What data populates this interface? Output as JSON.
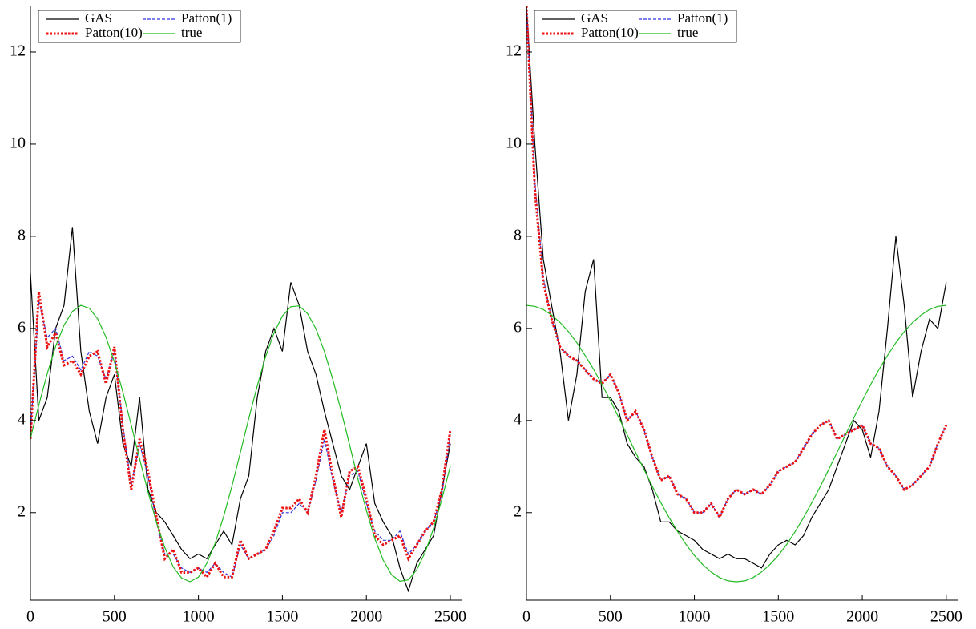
{
  "chart_data": [
    {
      "type": "line",
      "x": [
        0,
        50,
        100,
        150,
        200,
        250,
        300,
        350,
        400,
        450,
        500,
        550,
        600,
        650,
        700,
        750,
        800,
        850,
        900,
        950,
        1000,
        1050,
        1100,
        1150,
        1200,
        1250,
        1300,
        1350,
        1400,
        1450,
        1500,
        1550,
        1600,
        1650,
        1700,
        1750,
        1800,
        1850,
        1900,
        1950,
        2000,
        2050,
        2100,
        2150,
        2200,
        2250,
        2300,
        2350,
        2400,
        2450,
        2500
      ],
      "series": [
        {
          "name": "GAS",
          "color": "#000000",
          "style": "solid",
          "width": 1.2,
          "values": [
            7.2,
            4.0,
            4.5,
            6.0,
            6.5,
            8.2,
            5.5,
            4.2,
            3.5,
            4.5,
            5.0,
            3.5,
            3.0,
            4.5,
            2.5,
            2.0,
            1.8,
            1.5,
            1.2,
            1.0,
            1.1,
            1.0,
            1.3,
            1.6,
            1.3,
            2.3,
            2.8,
            4.5,
            5.5,
            6.0,
            5.5,
            7.0,
            6.5,
            5.5,
            5.0,
            4.2,
            3.5,
            2.8,
            2.5,
            3.0,
            3.5,
            2.2,
            1.8,
            1.5,
            0.8,
            0.3,
            0.9,
            1.2,
            1.5,
            2.5,
            3.5
          ]
        },
        {
          "name": "Patton(1)",
          "color": "#3333dd",
          "style": "dashed",
          "width": 1.2,
          "values": [
            3.7,
            6.6,
            5.8,
            6.0,
            5.3,
            5.4,
            5.1,
            5.5,
            5.4,
            4.9,
            5.5,
            3.9,
            2.6,
            3.5,
            2.8,
            1.8,
            1.1,
            1.1,
            0.8,
            0.7,
            0.8,
            0.7,
            0.9,
            0.7,
            0.6,
            1.3,
            1.0,
            1.1,
            1.2,
            1.5,
            2.0,
            2.0,
            2.2,
            2.0,
            2.7,
            3.6,
            2.7,
            2.0,
            2.8,
            2.9,
            2.2,
            1.6,
            1.4,
            1.4,
            1.6,
            1.1,
            1.3,
            1.6,
            1.8,
            2.4,
            3.7
          ]
        },
        {
          "name": "Patton(10)",
          "color": "#ee1111",
          "style": "dotted",
          "width": 3,
          "values": [
            3.6,
            6.8,
            5.6,
            5.9,
            5.2,
            5.3,
            5.0,
            5.4,
            5.5,
            4.8,
            5.6,
            3.8,
            2.5,
            3.6,
            2.9,
            1.9,
            1.0,
            1.2,
            0.7,
            0.7,
            0.8,
            0.6,
            0.9,
            0.6,
            0.6,
            1.4,
            1.0,
            1.1,
            1.2,
            1.6,
            2.1,
            2.1,
            2.3,
            2.0,
            2.8,
            3.8,
            2.8,
            1.9,
            2.9,
            3.0,
            2.3,
            1.5,
            1.3,
            1.4,
            1.5,
            1.0,
            1.3,
            1.6,
            1.8,
            2.5,
            3.8
          ]
        },
        {
          "name": "true",
          "color": "#22bb22",
          "style": "solid",
          "width": 1.2,
          "values": [
            3.61,
            4.34,
            5.02,
            5.61,
            6.07,
            6.37,
            6.5,
            6.44,
            6.21,
            5.81,
            5.27,
            4.62,
            3.9,
            3.17,
            2.45,
            1.79,
            1.24,
            0.82,
            0.58,
            0.5,
            0.6,
            0.9,
            1.34,
            1.92,
            2.58,
            3.31,
            4.05,
            4.75,
            5.39,
            5.9,
            6.27,
            6.47,
            6.49,
            6.32,
            5.99,
            5.5,
            4.89,
            4.2,
            3.47,
            2.73,
            2.05,
            1.44,
            0.97,
            0.65,
            0.51,
            0.54,
            0.76,
            1.14,
            1.66,
            2.3,
            3.01
          ]
        }
      ],
      "xlim": [
        0,
        2570
      ],
      "ylim": [
        0.1,
        13
      ],
      "xticks": [
        0,
        500,
        1000,
        1500,
        2000,
        2500
      ],
      "yticks": [
        2,
        4,
        6,
        8,
        10,
        12
      ]
    },
    {
      "type": "line",
      "x": [
        0,
        50,
        100,
        150,
        200,
        250,
        300,
        350,
        400,
        450,
        500,
        550,
        600,
        650,
        700,
        750,
        800,
        850,
        900,
        950,
        1000,
        1050,
        1100,
        1150,
        1200,
        1250,
        1300,
        1350,
        1400,
        1450,
        1500,
        1550,
        1600,
        1650,
        1700,
        1750,
        1800,
        1850,
        1900,
        1950,
        2000,
        2050,
        2100,
        2150,
        2200,
        2250,
        2300,
        2350,
        2400,
        2450,
        2500
      ],
      "series": [
        {
          "name": "GAS",
          "color": "#000000",
          "style": "solid",
          "width": 1.2,
          "values": [
            13,
            10,
            7.5,
            6.5,
            5.5,
            4.0,
            5.0,
            6.8,
            7.5,
            4.5,
            4.5,
            4.2,
            3.5,
            3.2,
            3.0,
            2.5,
            1.8,
            1.8,
            1.6,
            1.5,
            1.4,
            1.2,
            1.1,
            1.0,
            1.1,
            1.0,
            1.0,
            0.9,
            0.8,
            1.1,
            1.3,
            1.4,
            1.3,
            1.5,
            1.9,
            2.2,
            2.5,
            3.0,
            3.5,
            4.0,
            3.8,
            3.2,
            4.2,
            6.0,
            8.0,
            6.5,
            4.5,
            5.5,
            6.2,
            6.0,
            7.0
          ]
        },
        {
          "name": "Patton(1)",
          "color": "#3333dd",
          "style": "dashed",
          "width": 1.2,
          "values": [
            13,
            9.2,
            7.1,
            6.2,
            5.6,
            5.4,
            5.3,
            5.1,
            4.9,
            4.8,
            5.0,
            4.6,
            4.0,
            4.2,
            3.8,
            3.2,
            2.7,
            2.8,
            2.4,
            2.3,
            2.0,
            2.0,
            2.2,
            1.9,
            2.3,
            2.5,
            2.4,
            2.5,
            2.4,
            2.6,
            2.9,
            3.0,
            3.1,
            3.4,
            3.7,
            3.9,
            4.0,
            3.6,
            3.7,
            3.8,
            3.9,
            3.5,
            3.4,
            3.0,
            2.8,
            2.5,
            2.6,
            2.8,
            3.0,
            3.5,
            3.9
          ]
        },
        {
          "name": "Patton(10)",
          "color": "#ee1111",
          "style": "dotted",
          "width": 3,
          "values": [
            13,
            9,
            7.0,
            6.2,
            5.6,
            5.4,
            5.3,
            5.1,
            4.9,
            4.8,
            5.0,
            4.6,
            4.0,
            4.2,
            3.8,
            3.2,
            2.7,
            2.8,
            2.4,
            2.3,
            2.0,
            2.0,
            2.2,
            1.9,
            2.3,
            2.5,
            2.4,
            2.5,
            2.4,
            2.6,
            2.9,
            3.0,
            3.1,
            3.4,
            3.7,
            3.9,
            4.0,
            3.6,
            3.7,
            3.8,
            3.9,
            3.5,
            3.4,
            3.0,
            2.8,
            2.5,
            2.6,
            2.8,
            3.0,
            3.5,
            3.9
          ]
        },
        {
          "name": "true",
          "color": "#22bb22",
          "style": "solid",
          "width": 1.2,
          "values": [
            6.5,
            6.48,
            6.41,
            6.29,
            6.13,
            5.93,
            5.69,
            5.41,
            5.11,
            4.78,
            4.43,
            4.06,
            3.69,
            3.31,
            2.94,
            2.57,
            2.22,
            1.89,
            1.59,
            1.31,
            1.07,
            0.87,
            0.71,
            0.59,
            0.52,
            0.5,
            0.52,
            0.59,
            0.71,
            0.87,
            1.07,
            1.31,
            1.59,
            1.89,
            2.22,
            2.57,
            2.94,
            3.31,
            3.69,
            4.06,
            4.43,
            4.78,
            5.11,
            5.41,
            5.69,
            5.93,
            6.13,
            6.29,
            6.41,
            6.48,
            6.5
          ]
        }
      ],
      "xlim": [
        0,
        2570
      ],
      "ylim": [
        0.1,
        13
      ],
      "xticks": [
        0,
        500,
        1000,
        1500,
        2000,
        2500
      ],
      "yticks": [
        2,
        4,
        6,
        8,
        10,
        12
      ]
    }
  ]
}
